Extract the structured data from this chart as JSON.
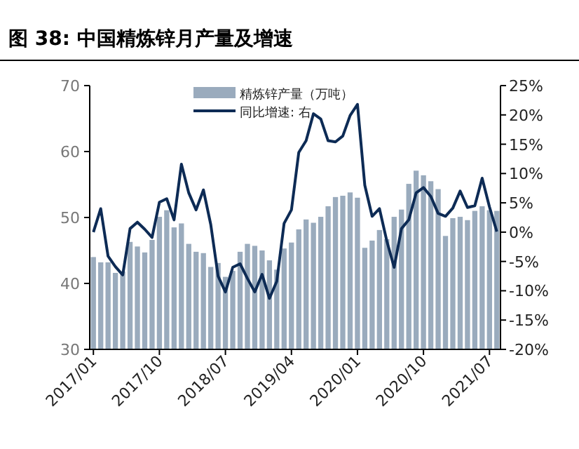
{
  "chart_data": {
    "type": "bar",
    "title": "图 38:  中国精炼锌月产量及增速",
    "categories": [
      "2017/01",
      null,
      null,
      null,
      null,
      null,
      null,
      null,
      null,
      "2017/10",
      null,
      null,
      null,
      null,
      null,
      null,
      null,
      null,
      "2018/07",
      null,
      null,
      null,
      null,
      null,
      null,
      null,
      null,
      "2019/04",
      null,
      null,
      null,
      null,
      null,
      null,
      null,
      null,
      "2020/01",
      null,
      null,
      null,
      null,
      null,
      null,
      null,
      null,
      "2020/10",
      null,
      null,
      null,
      null,
      null,
      null,
      null,
      null,
      "2021/07",
      null
    ],
    "series": [
      {
        "name": "精炼锌产量（万吨）",
        "color": "#9aabbd",
        "values": [
          44.0,
          43.2,
          43.2,
          41.6,
          41.8,
          46.3,
          45.6,
          44.7,
          46.6,
          50.1,
          51.1,
          48.5,
          49.1,
          46.0,
          44.8,
          44.6,
          42.5,
          43.1,
          41.0,
          41.9,
          44.8,
          46.0,
          45.7,
          45.0,
          43.5,
          42.1,
          45.3,
          46.2,
          48.2,
          49.7,
          49.2,
          50.1,
          51.7,
          53.1,
          53.3,
          53.8,
          53.0,
          45.4,
          46.5,
          48.1,
          46.7,
          50.1,
          51.2,
          55.1,
          57.1,
          56.4,
          55.5,
          54.3,
          47.2,
          49.9,
          50.1,
          49.6,
          51.0,
          51.7,
          51.1,
          51.0
        ]
      },
      {
        "name": "同比增速: 右",
        "type": "line",
        "axis": "y2",
        "color": "#0d2b55",
        "values": [
          0,
          4.0,
          -4.1,
          -5.9,
          -7.3,
          0.6,
          1.7,
          0.5,
          -0.9,
          5.1,
          5.7,
          2.1,
          11.6,
          6.7,
          3.8,
          7.2,
          1.3,
          -7.5,
          -10.2,
          -6.0,
          -5.4,
          -7.9,
          -10.2,
          -7.2,
          -11.3,
          -8.4,
          1.5,
          3.8,
          13.6,
          15.6,
          20.2,
          19.3,
          15.6,
          15.4,
          16.4,
          19.9,
          21.8,
          8.0,
          2.7,
          4.0,
          -1.5,
          -6.0,
          0.6,
          2.1,
          6.7,
          7.6,
          6.1,
          3.2,
          2.7,
          4.1,
          7.0,
          4.2,
          4.5,
          9.2,
          4.3,
          0.1
        ]
      }
    ],
    "ylim": [
      30,
      70
    ],
    "yticks": [
      30,
      40,
      50,
      60,
      70
    ],
    "y2lim": [
      -20,
      25
    ],
    "y2ticks": [
      {
        "value": -20,
        "label": "-20%"
      },
      {
        "value": -15,
        "label": "-15%"
      },
      {
        "value": -10,
        "label": "-10%"
      },
      {
        "value": -5,
        "label": "-5%"
      },
      {
        "value": 0,
        "label": "0%"
      },
      {
        "value": 5,
        "label": "5%"
      },
      {
        "value": 10,
        "label": "10%"
      },
      {
        "value": 15,
        "label": "15%"
      },
      {
        "value": 20,
        "label": "20%"
      },
      {
        "value": 25,
        "label": "25%"
      }
    ],
    "legend": "top",
    "grid": false
  }
}
